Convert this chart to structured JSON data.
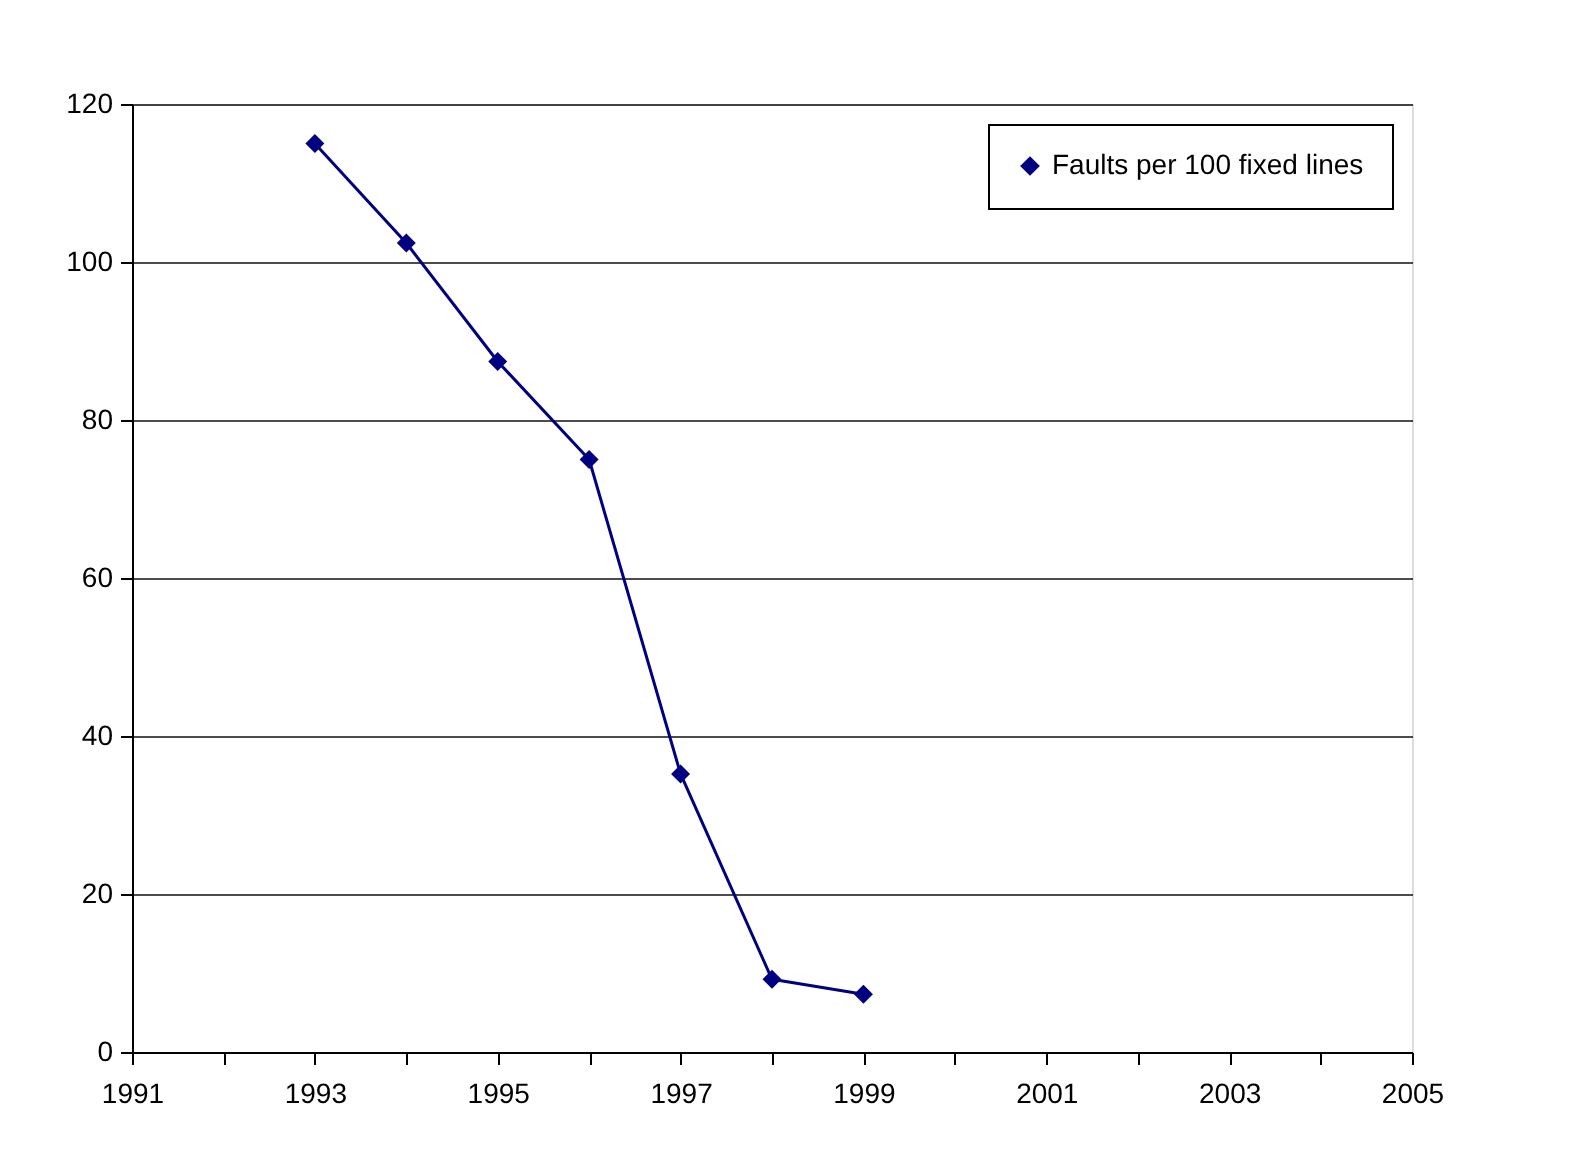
{
  "chart_data": {
    "type": "line",
    "x": [
      1993,
      1994,
      1995,
      1996,
      1997,
      1998,
      1999
    ],
    "series": [
      {
        "name": "Faults per 100 fixed lines",
        "color": "#000080",
        "values": [
          115,
          102.4,
          87.4,
          75,
          35.2,
          9.2,
          7.3
        ]
      }
    ],
    "xlim": [
      1991,
      2005
    ],
    "xticks": [
      1991,
      {
        "value": 1992,
        "label": null
      },
      1993,
      {
        "value": 1994,
        "label": null
      },
      1995,
      {
        "value": 1996,
        "label": null
      },
      1997,
      {
        "value": 1998,
        "label": null
      },
      1999,
      {
        "value": 2000,
        "label": null
      },
      2001,
      {
        "value": 2002,
        "label": null
      },
      2003,
      {
        "value": 2004,
        "label": null
      },
      2005
    ],
    "ylim": [
      0,
      120
    ],
    "yticks": [
      0,
      20,
      40,
      60,
      80,
      100,
      120
    ],
    "grid": "y",
    "legend": "top right",
    "marker": "diamond",
    "line_style": "solid"
  }
}
